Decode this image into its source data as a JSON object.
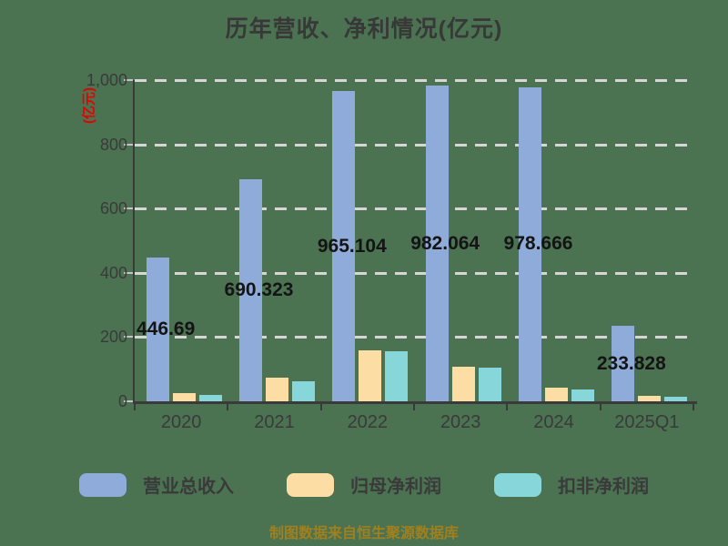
{
  "page": {
    "background": "#4B7352"
  },
  "chart_data": {
    "type": "bar",
    "title": "历年营收、净利情况(亿元)",
    "ylabel": "(亿元)",
    "ylabel_color": "#E60000",
    "footer": "制图数据来自恒生聚源数据库",
    "footer_color": "#A0801E",
    "categories": [
      "2020",
      "2021",
      "2022",
      "2023",
      "2024",
      "2025Q1"
    ],
    "series": [
      {
        "name": "营业总收入",
        "color": "#8EABD9",
        "values": [
          446.69,
          690.323,
          965.104,
          982.064,
          978.666,
          233.828
        ],
        "data_labels": [
          "446.69",
          "690.323",
          "965.104",
          "982.064",
          "978.666",
          "233.828"
        ]
      },
      {
        "name": "归母净利润",
        "color": "#FCDDA4",
        "values": [
          25,
          73,
          159,
          107,
          42,
          16
        ]
      },
      {
        "name": "扣非净利润",
        "color": "#87D6D9",
        "values": [
          21,
          62,
          156,
          104,
          38,
          14
        ]
      }
    ],
    "ylim": [
      0,
      1000
    ],
    "yticks": [
      {
        "label": "0",
        "value": 0
      },
      {
        "label": "200",
        "value": 200
      },
      {
        "label": "400",
        "value": 400
      },
      {
        "label": "600",
        "value": 600
      },
      {
        "label": "800",
        "value": 800
      },
      {
        "label": "1,000",
        "value": 1000
      }
    ],
    "grid": "horizontal-dashed",
    "grid_color": "#D6D6D6",
    "axis_color": "#3A3A3A",
    "legend_position": "bottom"
  }
}
